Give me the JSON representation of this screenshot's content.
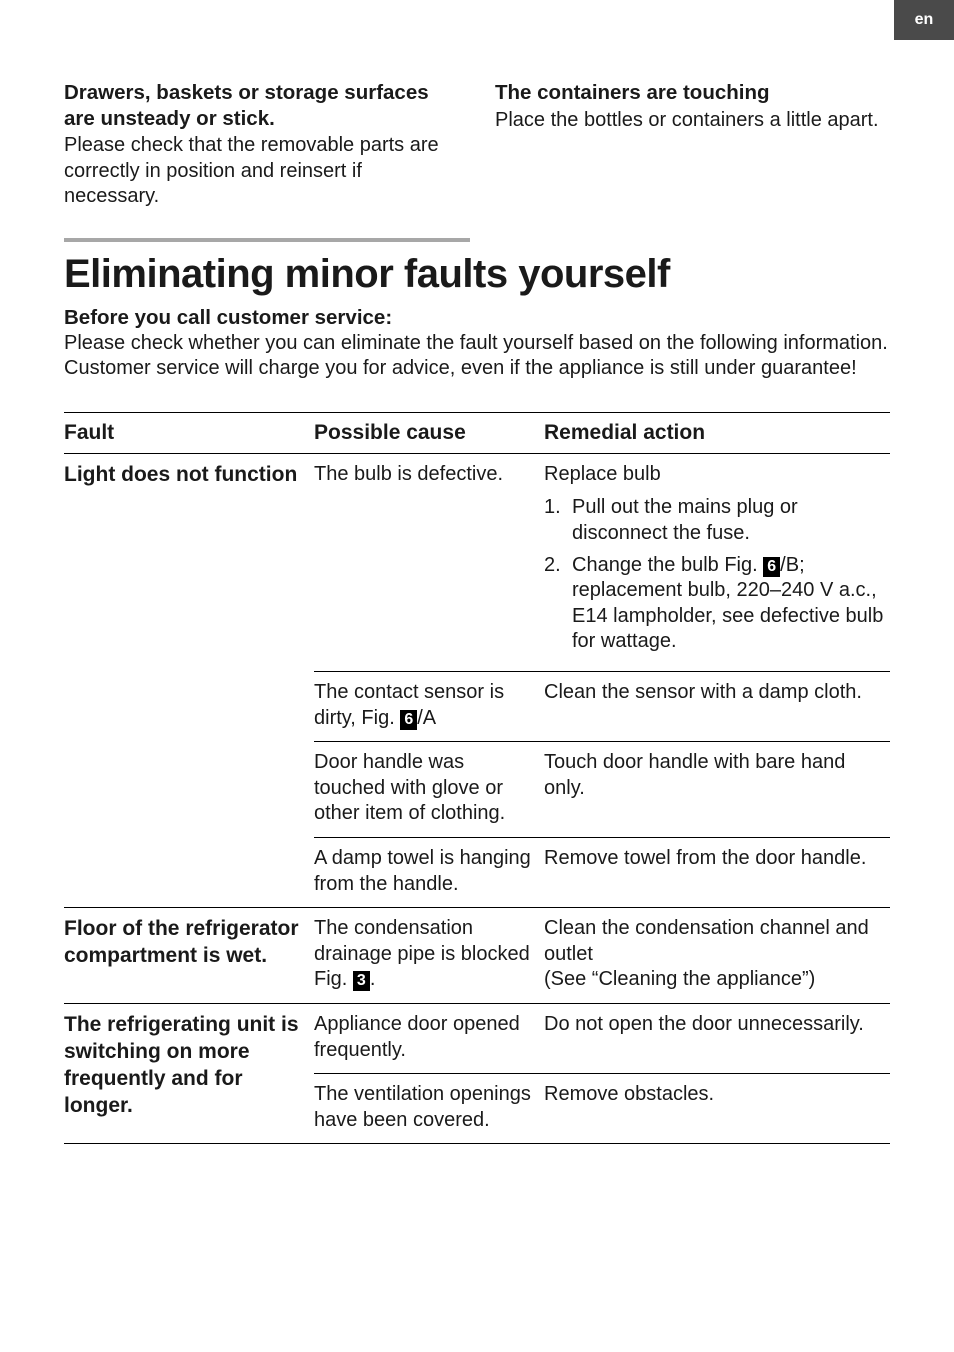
{
  "colors": {
    "lang_tab_bg": "#4a4a4a",
    "rule_color": "#a7a7a7",
    "text": "#1a1a1a"
  },
  "lang_tab": "en",
  "top": {
    "left": {
      "heading": "Drawers, baskets or storage surfaces are unsteady or stick.",
      "body": "Please check that the removable parts are correctly in position and reinsert if necessary."
    },
    "right": {
      "heading": "The containers are touching",
      "body": "Place the bottles or containers a little apart."
    }
  },
  "section": {
    "title": "Eliminating minor faults yourself",
    "intro_head": "Before you call customer service:",
    "intro_body": "Please check whether you can eliminate the fault yourself based on the following information.\nCustomer service will charge you for advice, even if the appliance is still under guarantee!"
  },
  "table": {
    "headers": {
      "fault": "Fault",
      "cause": "Possible cause",
      "action": "Remedial action"
    },
    "rows": [
      {
        "fault": "Light does not function",
        "cause": "The bulb is defective.",
        "action_lead": "Replace bulb",
        "action_steps": [
          "Pull out the mains plug or disconnect the fuse.",
          {
            "pre": "Change the bulb ",
            "fig_label": "Fig.",
            "fig_num": "6",
            "fig_suffix": "/B",
            "post": "; replacement bulb, 220–240 V a.c., E14 lampholder, see defective bulb for wattage."
          }
        ]
      },
      {
        "fault": "",
        "cause_pre": "The contact sensor is dirty, ",
        "cause_fig_label": "Fig.",
        "cause_fig_num": "6",
        "cause_fig_suffix": "/A",
        "action": "Clean the sensor with a damp cloth."
      },
      {
        "fault": "",
        "cause": "Door handle was touched with glove or other item of clothing.",
        "action": "Touch door handle with bare hand only."
      },
      {
        "fault": "",
        "cause": "A damp towel is hanging from the handle.",
        "action": "Remove towel from the door handle."
      },
      {
        "fault": "Floor of the refrigerator compartment is wet.",
        "cause_pre": "The condensation drainage pipe is blocked ",
        "cause_fig_label": "Fig.",
        "cause_fig_num": "3",
        "cause_fig_suffix": ".",
        "action": "Clean the condensation channel and outlet\n(See “Cleaning the appliance”)"
      },
      {
        "fault": "The refrigerating unit is switching on more frequently and for longer.",
        "cause": "Appliance door opened frequently.",
        "action": "Do not open the door unnecessarily."
      },
      {
        "fault": "",
        "cause": "The ventilation openings have been covered.",
        "action": "Remove obstacles."
      }
    ]
  }
}
